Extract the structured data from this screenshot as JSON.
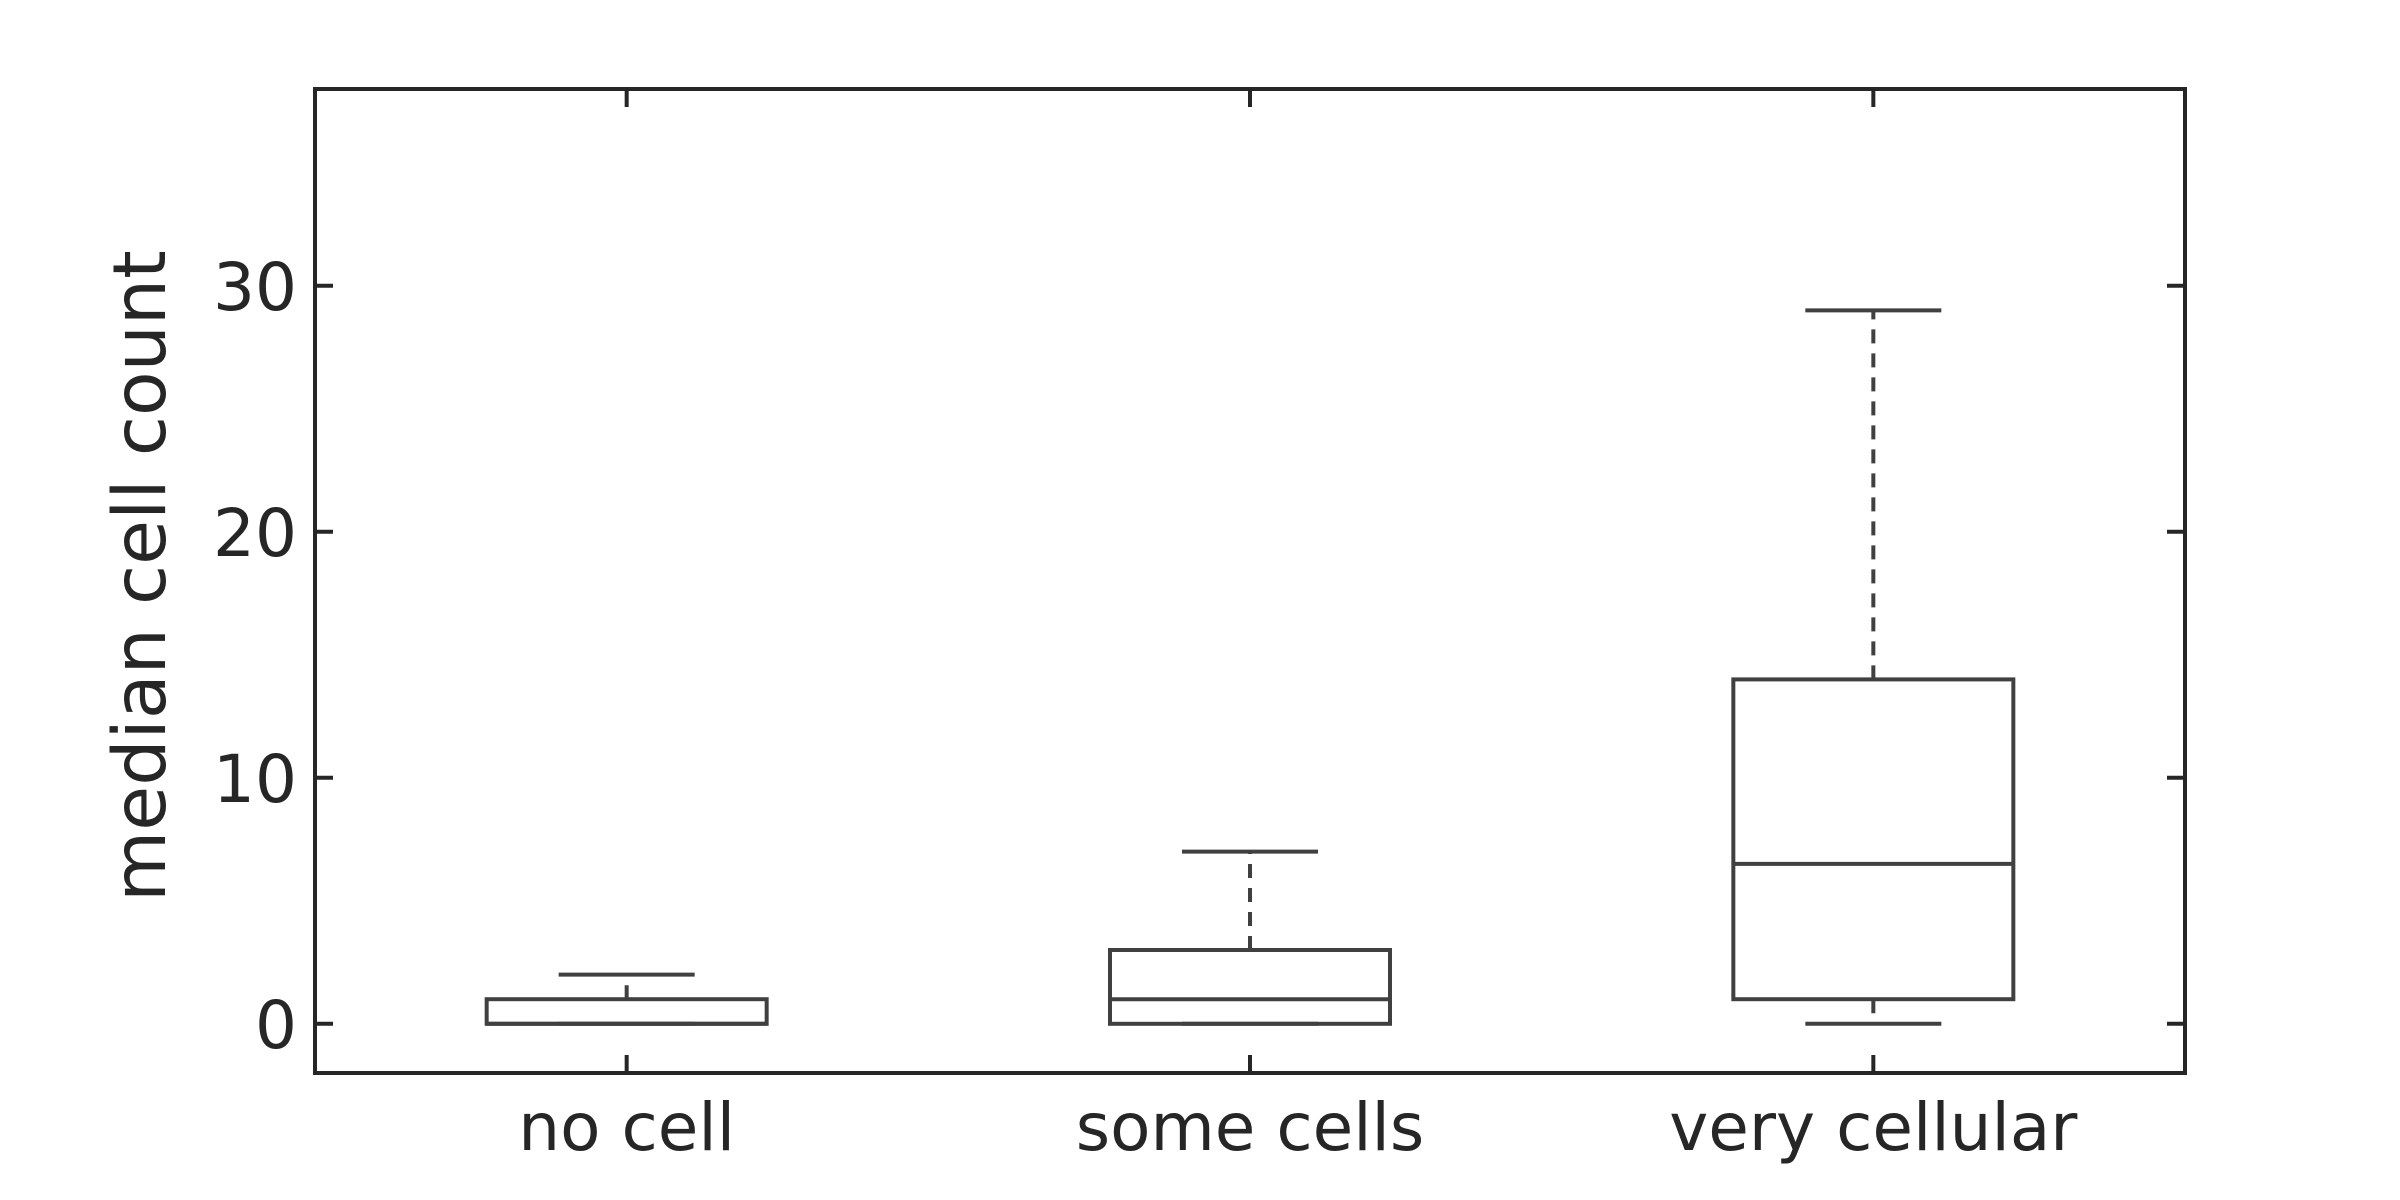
{
  "chart_data": {
    "type": "box",
    "title": "",
    "xlabel": "",
    "ylabel": "median cell count",
    "ylim": [
      -2,
      38
    ],
    "yticks": [
      0,
      10,
      20,
      30
    ],
    "grid": false,
    "categories": [
      "no cell",
      "some cells",
      "very cellular"
    ],
    "boxes": [
      {
        "category": "no cell",
        "whisker_low": 0,
        "q1": 0,
        "median": 0,
        "q3": 1,
        "whisker_high": 2
      },
      {
        "category": "some cells",
        "whisker_low": 0,
        "q1": 0,
        "median": 1,
        "q3": 3,
        "whisker_high": 7
      },
      {
        "category": "very cellular",
        "whisker_low": 0,
        "q1": 1,
        "median": 6.5,
        "q3": 14,
        "whisker_high": 29
      }
    ],
    "colors": {
      "box": "#404040",
      "axis": "#262626",
      "text": "#262626"
    }
  }
}
